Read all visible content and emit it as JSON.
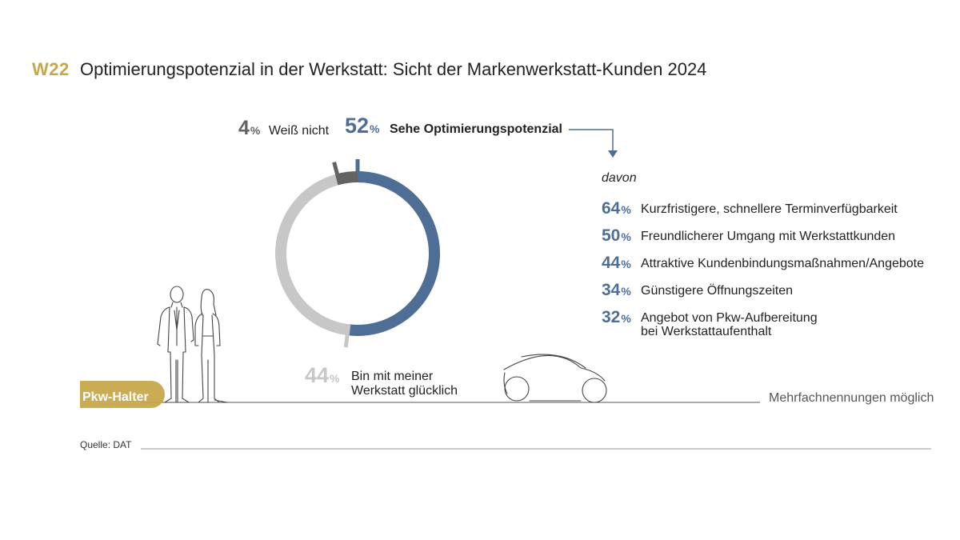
{
  "header": {
    "code": "W22",
    "title": "Optimierungspotenzial in der Werkstatt: Sicht der Markenwerkstatt-Kunden 2024"
  },
  "chart_data": {
    "type": "pie",
    "variant": "donut",
    "slices": [
      {
        "label": "Sehe Optimierungspotenzial",
        "value": 52,
        "color": "#4e6e96"
      },
      {
        "label": "Bin mit meiner Werkstatt glücklich",
        "value": 44,
        "color": "#c7c7c7"
      },
      {
        "label": "Weiß nicht",
        "value": 4,
        "color": "#636363"
      }
    ],
    "unit": "%",
    "breakdown": {
      "intro": "davon",
      "parent": "Sehe Optimierungspotenzial",
      "items": [
        {
          "value": 64,
          "label": "Kurzfristigere, schnellere Terminverfügbarkeit"
        },
        {
          "value": 50,
          "label": "Freundlicherer Umgang mit Werkstattkunden"
        },
        {
          "value": 44,
          "label": "Attraktive Kundenbindungsmaßnahmen/Angebote"
        },
        {
          "value": 34,
          "label": "Günstigere Öffnungszeiten"
        },
        {
          "value": 32,
          "label": "Angebot von Pkw-Aufbereitung bei Werkstattaufenthalt"
        }
      ]
    }
  },
  "labels": {
    "slice_blue_value": "52",
    "slice_blue_text": "Sehe Optimierungspotenzial",
    "slice_dark_value": "4",
    "slice_dark_text": "Weiß nicht",
    "slice_grey_value": "44",
    "slice_grey_text_1": "Bin mit meiner",
    "slice_grey_text_2": "Werkstatt glücklich",
    "pct_sign": "%",
    "item_3_text_1": "Angebot von Pkw-Aufbereitung",
    "item_3_text_2": "bei Werkstattaufenthalt"
  },
  "footer": {
    "group_label": "Pkw-Halter",
    "note": "Mehrfachnennungen möglich",
    "source": "Quelle: DAT"
  },
  "colors": {
    "accent": "#c6a84a",
    "blue": "#4e6e96",
    "light_grey": "#c7c7c7",
    "dark_grey": "#636363"
  },
  "icons": [
    "people-illustration",
    "car-illustration",
    "down-arrow-icon"
  ]
}
